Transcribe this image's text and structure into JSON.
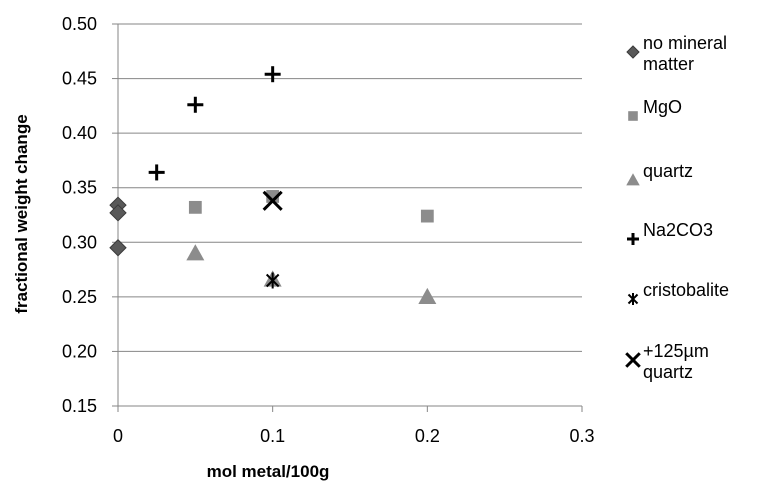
{
  "chart_data": {
    "type": "scatter",
    "title": "",
    "xlabel": "mol metal/100g",
    "ylabel": "fractional weight change",
    "xlim": [
      0,
      0.3
    ],
    "ylim": [
      0.15,
      0.5
    ],
    "x_ticks": [
      "0",
      "0.1",
      "0.2",
      "0.3"
    ],
    "y_ticks": [
      "0.15",
      "0.20",
      "0.25",
      "0.30",
      "0.35",
      "0.40",
      "0.45",
      "0.50"
    ],
    "grid": "horizontal",
    "legend_position": "right",
    "series": [
      {
        "name": "no mineral matter",
        "marker": "diamond",
        "color": "#595959",
        "points": [
          [
            0,
            0.334
          ],
          [
            0,
            0.327
          ],
          [
            0,
            0.295
          ]
        ]
      },
      {
        "name": "MgO",
        "marker": "square",
        "color": "#8c8c8c",
        "points": [
          [
            0.05,
            0.332
          ],
          [
            0.1,
            0.342
          ],
          [
            0.2,
            0.324
          ]
        ]
      },
      {
        "name": "quartz",
        "marker": "triangle",
        "color": "#8c8c8c",
        "points": [
          [
            0.05,
            0.29
          ],
          [
            0.1,
            0.266
          ],
          [
            0.2,
            0.25
          ]
        ]
      },
      {
        "name": "Na2CO3",
        "marker": "plus",
        "color": "#000000",
        "points": [
          [
            0.025,
            0.364
          ],
          [
            0.05,
            0.426
          ],
          [
            0.1,
            0.454
          ]
        ]
      },
      {
        "name": "cristobalite",
        "marker": "asterisk",
        "color": "#000000",
        "points": [
          [
            0.1,
            0.265
          ]
        ]
      },
      {
        "name": "+125µm quartz",
        "legend_lines": [
          "+125µm",
          "quartz"
        ],
        "marker": "x",
        "color": "#000000",
        "points": [
          [
            0.1,
            0.338
          ]
        ]
      }
    ]
  }
}
